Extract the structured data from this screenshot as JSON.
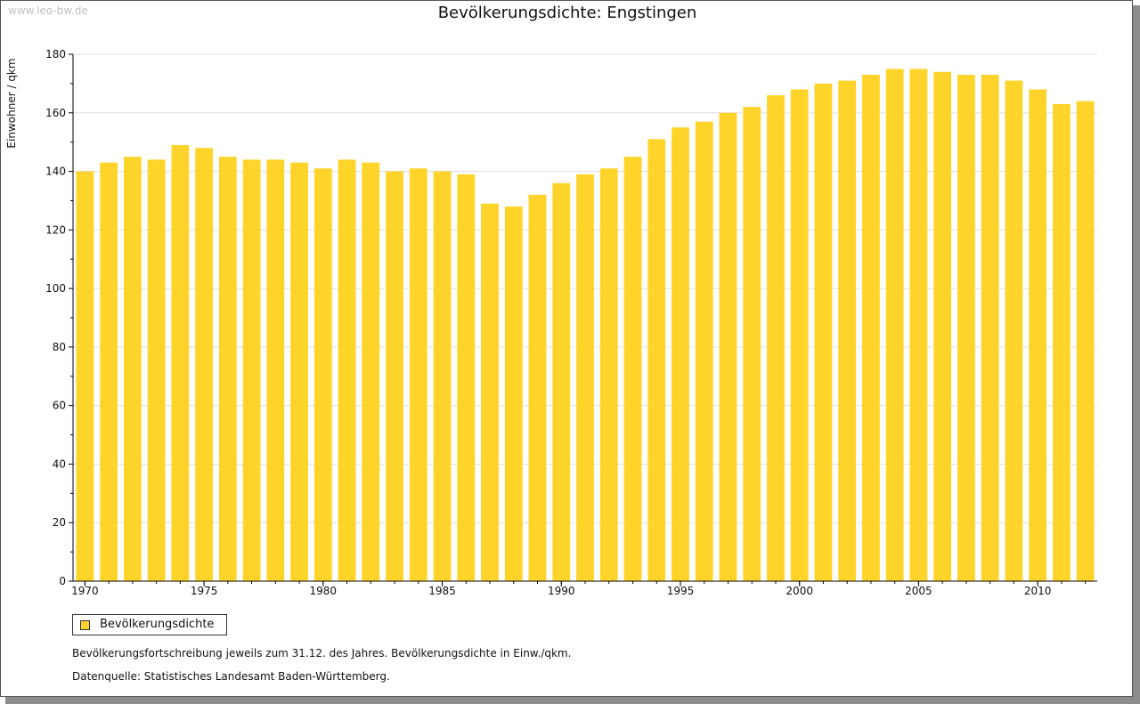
{
  "watermark": "www.leo-bw.de",
  "footnote": "Bevölkerungsfortschreibung jeweils zum 31.12. des Jahres. Bevölkerungsdichte in Einw./qkm.",
  "source": "Datenquelle: Statistisches Landesamt Baden-Württemberg.",
  "colors": {
    "bar": "#FFD42A",
    "grid": "#dddddd",
    "axis": "#000000"
  },
  "chart_data": {
    "type": "bar",
    "title": "Bevölkerungsdichte: Engstingen",
    "xlabel": "",
    "ylabel": "Einwohner / qkm",
    "legend": "Bevölkerungsdichte",
    "legend_position": "bottom-left",
    "ylim": [
      0,
      180
    ],
    "yticks": [
      0,
      20,
      40,
      60,
      80,
      100,
      120,
      140,
      160,
      180
    ],
    "xtick_labels": [
      "1970",
      "1975",
      "1980",
      "1985",
      "1990",
      "1995",
      "2000",
      "2005",
      "2010"
    ],
    "grid": true,
    "categories": [
      1970,
      1971,
      1972,
      1973,
      1974,
      1975,
      1976,
      1977,
      1978,
      1979,
      1980,
      1981,
      1982,
      1983,
      1984,
      1985,
      1986,
      1987,
      1988,
      1989,
      1990,
      1991,
      1992,
      1993,
      1994,
      1995,
      1996,
      1997,
      1998,
      1999,
      2000,
      2001,
      2002,
      2003,
      2004,
      2005,
      2006,
      2007,
      2008,
      2009,
      2010,
      2011,
      2012
    ],
    "values": [
      140,
      143,
      145,
      144,
      149,
      148,
      145,
      144,
      144,
      143,
      141,
      144,
      143,
      140,
      141,
      140,
      139,
      129,
      128,
      132,
      136,
      139,
      141,
      145,
      151,
      155,
      157,
      160,
      162,
      166,
      168,
      170,
      171,
      173,
      175,
      175,
      174,
      173,
      173,
      171,
      168,
      163,
      164
    ]
  }
}
